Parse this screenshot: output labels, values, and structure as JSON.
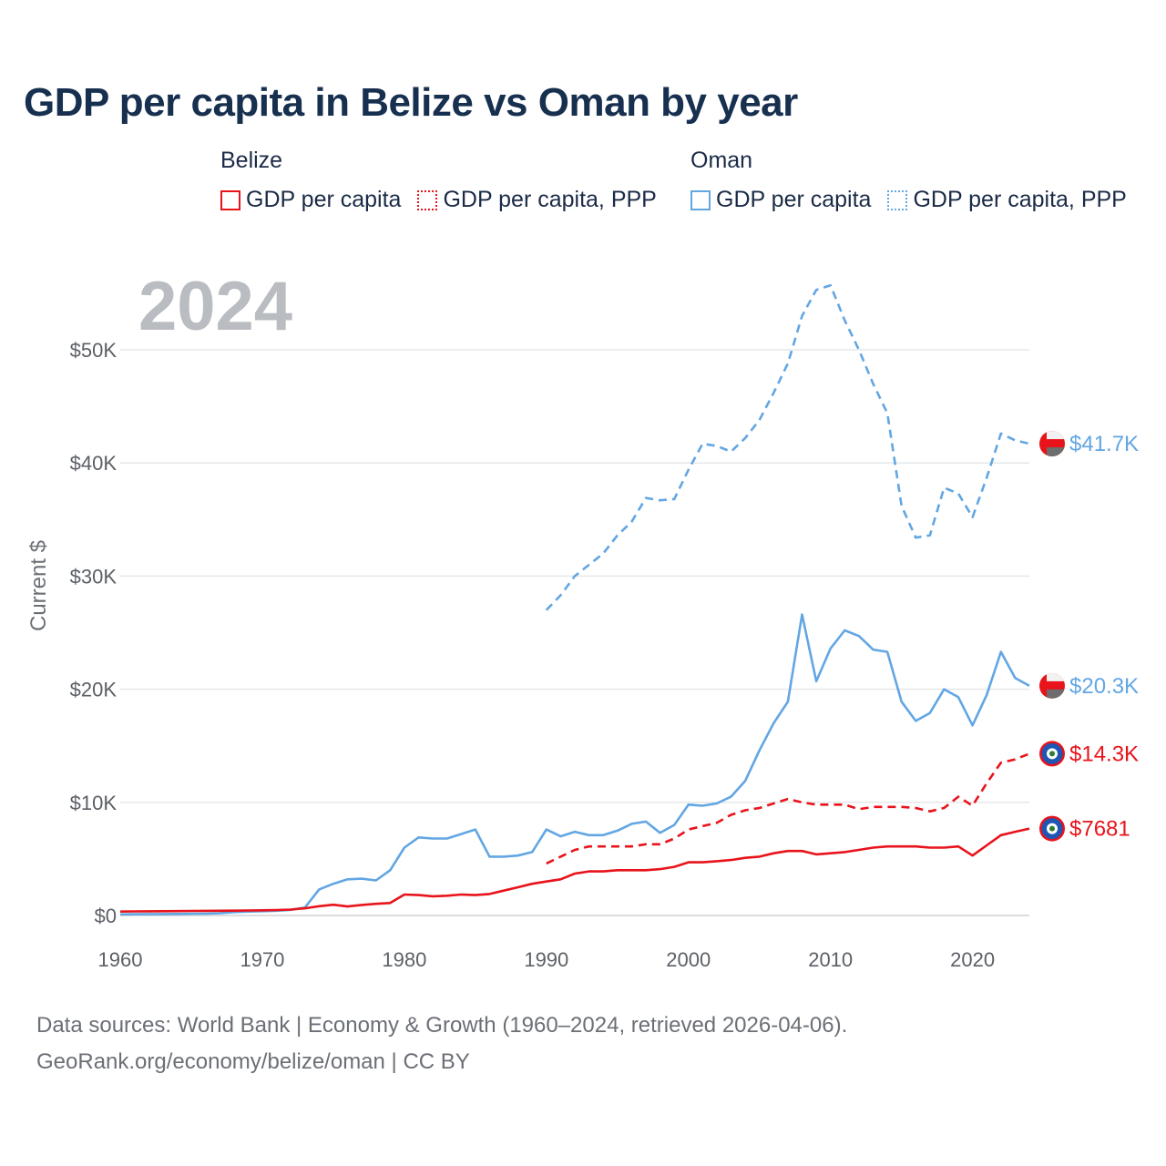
{
  "title": "GDP per capita in Belize vs Oman by year",
  "legend": {
    "groups": [
      {
        "name": "Belize",
        "items": [
          {
            "label": "GDP per capita",
            "style": "solid",
            "color": "#e8131b"
          },
          {
            "label": "GDP per capita, PPP",
            "style": "dotted",
            "color": "#e8131b"
          }
        ]
      },
      {
        "name": "Oman",
        "items": [
          {
            "label": "GDP per capita",
            "style": "solid",
            "color": "#62a6e3"
          },
          {
            "label": "GDP per capita, PPP",
            "style": "dotted",
            "color": "#62a6e3"
          }
        ]
      }
    ]
  },
  "footer": {
    "line1": "Data sources: World Bank | Economy & Growth (1960–2024, retrieved 2026-04-06).",
    "line2": "GeoRank.org/economy/belize/oman | CC BY"
  },
  "chart_data": {
    "type": "line",
    "title": "GDP per capita in Belize vs Oman by year",
    "highlight_year": "2024",
    "xlabel": "",
    "ylabel": "Current $",
    "xlim": [
      1960,
      2024
    ],
    "ylim": [
      0,
      56000
    ],
    "x_ticks": [
      1960,
      1970,
      1980,
      1990,
      2000,
      2010,
      2020
    ],
    "y_ticks": [
      0,
      10000,
      20000,
      30000,
      40000,
      50000
    ],
    "y_tick_labels": [
      "$0",
      "$10K",
      "$20K",
      "$30K",
      "$40K",
      "$50K"
    ],
    "grid": true,
    "series": [
      {
        "name": "Oman GDP per capita, PPP",
        "country": "Oman",
        "style": "dashed",
        "color": "#62a6e3",
        "end_label": "$41.7K",
        "x": [
          1990,
          1991,
          1992,
          1993,
          1994,
          1995,
          1996,
          1997,
          1998,
          1999,
          2000,
          2001,
          2002,
          2003,
          2004,
          2005,
          2006,
          2007,
          2008,
          2009,
          2010,
          2011,
          2012,
          2013,
          2014,
          2015,
          2016,
          2017,
          2018,
          2019,
          2020,
          2021,
          2022,
          2023,
          2024
        ],
        "values": [
          27000,
          28300,
          30000,
          31000,
          32000,
          33600,
          34800,
          36900,
          36700,
          36800,
          39400,
          41700,
          41500,
          41000,
          42200,
          43800,
          46200,
          48800,
          53000,
          55300,
          55700,
          52600,
          50000,
          47000,
          44400,
          36200,
          33400,
          33600,
          37800,
          37300,
          35200,
          38700,
          42600,
          42000,
          41700
        ]
      },
      {
        "name": "Oman GDP per capita",
        "country": "Oman",
        "style": "solid",
        "color": "#62a6e3",
        "end_label": "$20.3K",
        "x": [
          1960,
          1961,
          1962,
          1963,
          1964,
          1965,
          1966,
          1967,
          1968,
          1969,
          1970,
          1971,
          1972,
          1973,
          1974,
          1975,
          1976,
          1977,
          1978,
          1979,
          1980,
          1981,
          1982,
          1983,
          1984,
          1985,
          1986,
          1987,
          1988,
          1989,
          1990,
          1991,
          1992,
          1993,
          1994,
          1995,
          1996,
          1997,
          1998,
          1999,
          2000,
          2001,
          2002,
          2003,
          2004,
          2005,
          2006,
          2007,
          2008,
          2009,
          2010,
          2011,
          2012,
          2013,
          2014,
          2015,
          2016,
          2017,
          2018,
          2019,
          2020,
          2021,
          2022,
          2023,
          2024
        ],
        "values": [
          100,
          110,
          120,
          130,
          140,
          150,
          160,
          200,
          300,
          350,
          380,
          420,
          500,
          700,
          2300,
          2800,
          3200,
          3250,
          3100,
          4000,
          6000,
          6900,
          6800,
          6800,
          7200,
          7600,
          5200,
          5200,
          5300,
          5600,
          7600,
          7000,
          7400,
          7100,
          7100,
          7500,
          8100,
          8300,
          7300,
          8000,
          9800,
          9700,
          9900,
          10500,
          11900,
          14600,
          17000,
          18900,
          26600,
          20700,
          23600,
          25200,
          24700,
          23500,
          23300,
          18900,
          17200,
          17900,
          20000,
          19300,
          16800,
          19500,
          23300,
          21000,
          20300
        ]
      },
      {
        "name": "Belize GDP per capita, PPP",
        "country": "Belize",
        "style": "dashed",
        "color": "#e8131b",
        "end_label": "$14.3K",
        "x": [
          1990,
          1991,
          1992,
          1993,
          1994,
          1995,
          1996,
          1997,
          1998,
          1999,
          2000,
          2001,
          2002,
          2003,
          2004,
          2005,
          2006,
          2007,
          2008,
          2009,
          2010,
          2011,
          2012,
          2013,
          2014,
          2015,
          2016,
          2017,
          2018,
          2019,
          2020,
          2021,
          2022,
          2023,
          2024
        ],
        "values": [
          4600,
          5200,
          5800,
          6100,
          6100,
          6100,
          6100,
          6300,
          6300,
          6800,
          7600,
          7900,
          8200,
          8900,
          9300,
          9500,
          9900,
          10300,
          10000,
          9800,
          9800,
          9800,
          9400,
          9600,
          9600,
          9600,
          9500,
          9200,
          9500,
          10500,
          9700,
          11700,
          13500,
          13800,
          14300
        ]
      },
      {
        "name": "Belize GDP per capita",
        "country": "Belize",
        "style": "solid",
        "color": "#e8131b",
        "end_label": "$7681",
        "x": [
          1960,
          1961,
          1962,
          1963,
          1964,
          1965,
          1966,
          1967,
          1968,
          1969,
          1970,
          1971,
          1972,
          1973,
          1974,
          1975,
          1976,
          1977,
          1978,
          1979,
          1980,
          1981,
          1982,
          1983,
          1984,
          1985,
          1986,
          1987,
          1988,
          1989,
          1990,
          1991,
          1992,
          1993,
          1994,
          1995,
          1996,
          1997,
          1998,
          1999,
          2000,
          2001,
          2002,
          2003,
          2004,
          2005,
          2006,
          2007,
          2008,
          2009,
          2010,
          2011,
          2012,
          2013,
          2014,
          2015,
          2016,
          2017,
          2018,
          2019,
          2020,
          2021,
          2022,
          2023,
          2024
        ],
        "values": [
          350,
          360,
          370,
          380,
          390,
          400,
          410,
          420,
          430,
          440,
          460,
          480,
          520,
          640,
          820,
          950,
          800,
          930,
          1030,
          1100,
          1850,
          1800,
          1700,
          1750,
          1850,
          1800,
          1900,
          2200,
          2500,
          2800,
          3000,
          3200,
          3700,
          3900,
          3900,
          4000,
          4000,
          4000,
          4100,
          4300,
          4700,
          4700,
          4800,
          4900,
          5100,
          5200,
          5500,
          5700,
          5700,
          5400,
          5500,
          5600,
          5800,
          6000,
          6100,
          6100,
          6100,
          6000,
          6000,
          6100,
          5300,
          6200,
          7100,
          7400,
          7681
        ]
      }
    ]
  }
}
